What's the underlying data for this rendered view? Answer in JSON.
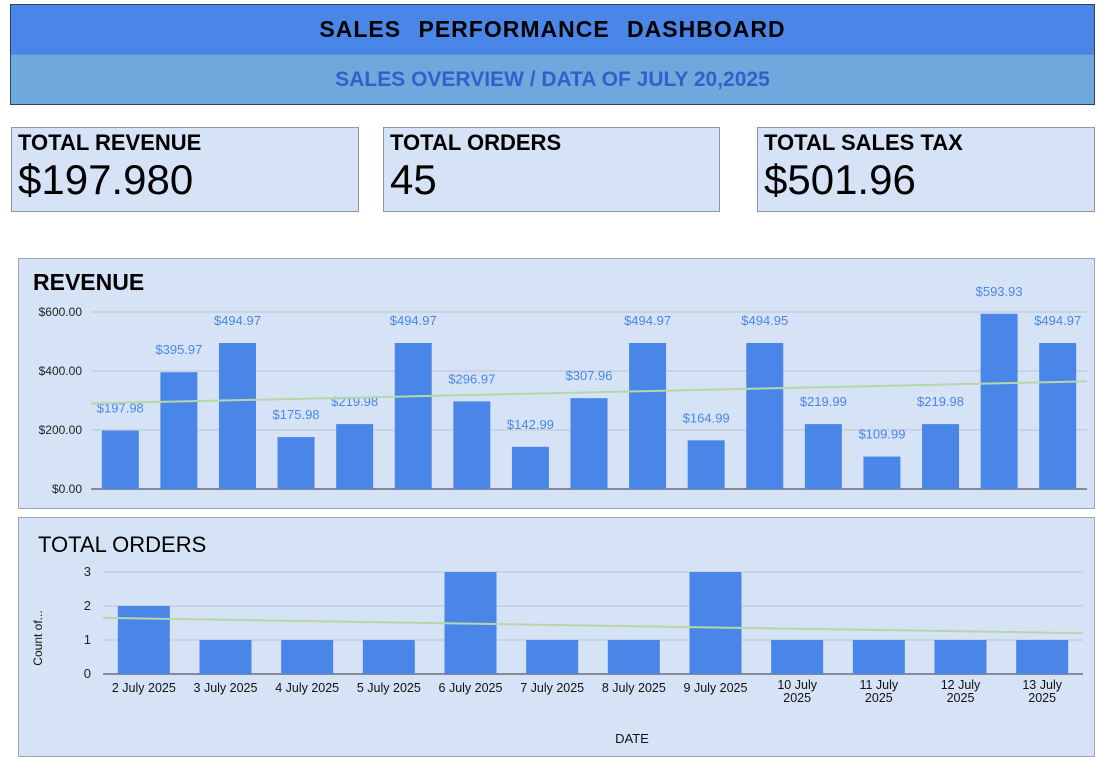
{
  "header": {
    "title": "SALES   PERFORMANCE   DASHBOARD",
    "subtitle": "SALES OVERVIEW / DATA OF JULY 20,2025"
  },
  "kpis": {
    "revenue": {
      "label": "TOTAL REVENUE",
      "value": "$197.980"
    },
    "orders": {
      "label": "TOTAL ORDERS",
      "value": "45"
    },
    "tax": {
      "label": "TOTAL SALES TAX",
      "value": "$501.96"
    }
  },
  "colors": {
    "bar": "#4a86e8",
    "trend": "#b6d7a8",
    "panel_bg": "#d6e3f6",
    "header_bg": "#4a86e8",
    "subheader_bg": "#6fa8dc",
    "data_label": "#4a86e8"
  },
  "chart_data": [
    {
      "type": "bar",
      "title": "REVENUE",
      "values": [
        197.98,
        395.97,
        494.97,
        175.98,
        219.98,
        494.97,
        296.97,
        142.99,
        307.96,
        494.97,
        164.99,
        494.95,
        219.99,
        109.99,
        219.98,
        593.93,
        494.97
      ],
      "data_labels": [
        "$197.98",
        "$395.97",
        "$494.97",
        "$175.98",
        "$219.98",
        "$494.97",
        "$296.97",
        "$142.99",
        "$307.96",
        "$494.97",
        "$164.99",
        "$494.95",
        "$219.99",
        "$109.99",
        "$219.98",
        "$593.93",
        "$494.97"
      ],
      "y_ticks": [
        "$0.00",
        "$200.00",
        "$400.00",
        "$600.00"
      ],
      "ylim": [
        0,
        600
      ],
      "trendline": [
        290,
        365
      ],
      "grid": true
    },
    {
      "type": "bar",
      "title": "TOTAL ORDERS",
      "xlabel": "DATE",
      "ylabel": "Count of...",
      "categories": [
        "2 July 2025",
        "3 July 2025",
        "4 July 2025",
        "5 July 2025",
        "6 July 2025",
        "7 July 2025",
        "8 July 2025",
        "9 July 2025",
        "10 July 2025",
        "11 July 2025",
        "12 July 2025",
        "13 July 2025"
      ],
      "values": [
        2,
        1,
        1,
        1,
        3,
        1,
        1,
        3,
        1,
        1,
        1,
        1
      ],
      "y_ticks": [
        "0",
        "1",
        "2",
        "3"
      ],
      "ylim": [
        0,
        3
      ],
      "trendline": [
        1.65,
        1.2
      ],
      "grid": true
    }
  ]
}
